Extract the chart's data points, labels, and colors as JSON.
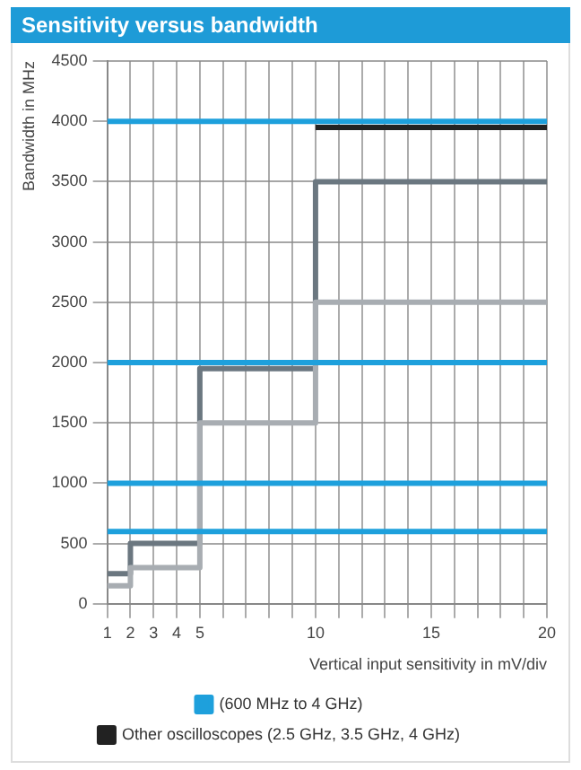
{
  "chart_data": {
    "type": "step",
    "title": "Sensitivity versus bandwidth",
    "xlabel": "Vertical input sensitivity in mV/div",
    "ylabel": "Bandwidth in MHz",
    "xlim": [
      1,
      20
    ],
    "xticks": [
      1,
      2,
      3,
      4,
      5,
      {
        "value": 6,
        "label": null
      },
      {
        "value": 7,
        "label": null
      },
      {
        "value": 8,
        "label": null
      },
      {
        "value": 9,
        "label": null
      },
      10,
      {
        "value": 11,
        "label": null
      },
      {
        "value": 12,
        "label": null
      },
      {
        "value": 13,
        "label": null
      },
      {
        "value": 14,
        "label": null
      },
      15,
      {
        "value": 16,
        "label": null
      },
      {
        "value": 17,
        "label": null
      },
      {
        "value": 18,
        "label": null
      },
      {
        "value": 19,
        "label": null
      },
      20
    ],
    "ylim": [
      0,
      4500
    ],
    "yticks": [
      0,
      500,
      1000,
      1500,
      2000,
      2500,
      3000,
      3500,
      4000,
      4500
    ],
    "grid": true,
    "legend": "bottom",
    "series": [
      {
        "name": "(600 MHz to 4 GHz)",
        "color": "#1ea0dc",
        "x": [
          1,
          20
        ],
        "values": [
          600,
          600
        ]
      },
      {
        "color": "#1ea0dc",
        "x": [
          1,
          20
        ],
        "values": [
          1000,
          1000
        ]
      },
      {
        "color": "#1ea0dc",
        "x": [
          1,
          20
        ],
        "values": [
          2000,
          2000
        ]
      },
      {
        "color": "#1ea0dc",
        "x": [
          1,
          20
        ],
        "values": [
          4000,
          4000
        ]
      },
      {
        "color": "#a8adb2",
        "x": [
          1,
          2,
          5,
          10,
          20
        ],
        "values": [
          150,
          300,
          1500,
          2500,
          2500
        ]
      },
      {
        "color": "#6b7780",
        "x": [
          1,
          2,
          5,
          10,
          20
        ],
        "values": [
          250,
          500,
          1950,
          3500,
          3500
        ]
      },
      {
        "name": "Other oscilloscopes (2.5 GHz, 3.5 GHz, 4 GHz)",
        "color": "#222222",
        "x": [
          10,
          20
        ],
        "values": [
          3950,
          3950
        ]
      }
    ]
  }
}
